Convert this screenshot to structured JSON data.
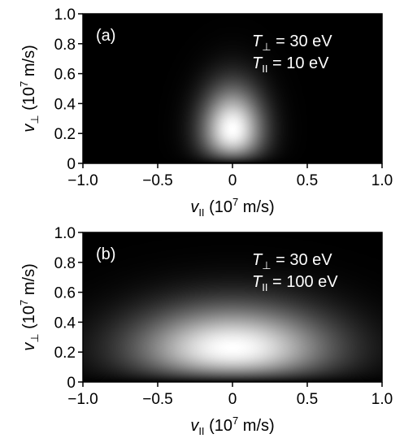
{
  "chart_data": [
    {
      "type": "heatmap",
      "panel_label": "(a)",
      "xlabel": {
        "sym": "v",
        "sub": "II",
        "unit_pre": " (10",
        "sup": "7",
        "unit_post": " m/s)"
      },
      "ylabel": {
        "sym": "v",
        "sub": "⊥",
        "unit_pre": " (10",
        "sup": "7",
        "unit_post": " m/s)"
      },
      "xlim": [
        -1.0,
        1.0
      ],
      "ylim": [
        0,
        1.0
      ],
      "xticks": [
        "−1.0",
        "−0.5",
        "0",
        "0.5",
        "1.0"
      ],
      "xtick_values": [
        -1.0,
        -0.5,
        0,
        0.5,
        1.0
      ],
      "yticks": [
        "0",
        "0.2",
        "0.4",
        "0.6",
        "0.8",
        "1.0"
      ],
      "ytick_values": [
        0,
        0.2,
        0.4,
        0.6,
        0.8,
        1.0
      ],
      "annotations": [
        {
          "sym": "T",
          "sub": "⊥",
          "text": " = 30 eV"
        },
        {
          "sym": "T",
          "sub": "II",
          "text": " = 10 eV"
        }
      ],
      "distribution": {
        "T_perp_eV": 30,
        "T_par_eV": 10
      },
      "colormap": [
        "#000000",
        "#ffffff"
      ]
    },
    {
      "type": "heatmap",
      "panel_label": "(b)",
      "xlabel": {
        "sym": "v",
        "sub": "II",
        "unit_pre": " (10",
        "sup": "7",
        "unit_post": " m/s)"
      },
      "ylabel": {
        "sym": "v",
        "sub": "⊥",
        "unit_pre": " (10",
        "sup": "7",
        "unit_post": " m/s)"
      },
      "xlim": [
        -1.0,
        1.0
      ],
      "ylim": [
        0,
        1.0
      ],
      "xticks": [
        "−1.0",
        "−0.5",
        "0",
        "0.5",
        "1.0"
      ],
      "xtick_values": [
        -1.0,
        -0.5,
        0,
        0.5,
        1.0
      ],
      "yticks": [
        "0",
        "0.2",
        "0.4",
        "0.6",
        "0.8",
        "1.0"
      ],
      "ytick_values": [
        0,
        0.2,
        0.4,
        0.6,
        0.8,
        1.0
      ],
      "annotations": [
        {
          "sym": "T",
          "sub": "⊥",
          "text": " = 30 eV"
        },
        {
          "sym": "T",
          "sub": "II",
          "text": " = 100 eV"
        }
      ],
      "distribution": {
        "T_perp_eV": 30,
        "T_par_eV": 100
      },
      "colormap": [
        "#000000",
        "#ffffff"
      ]
    }
  ]
}
